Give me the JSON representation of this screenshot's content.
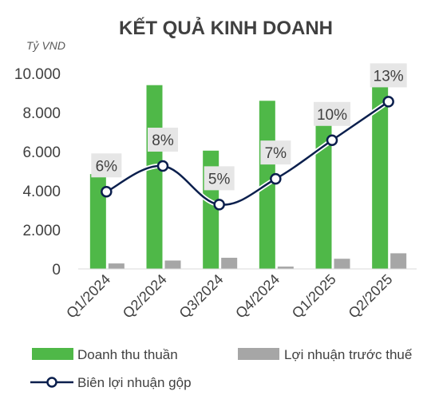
{
  "chart_data": {
    "type": "bar",
    "title": "KẾT QUẢ KINH DOANH",
    "unit_label": "Tỷ VND",
    "categories": [
      "Q1/2024",
      "Q2/2024",
      "Q3/2024",
      "Q4/2024",
      "Q1/2025",
      "Q2/2025"
    ],
    "ylim": [
      0,
      10000
    ],
    "yticks": [
      "0",
      "2.000",
      "4.000",
      "6.000",
      "8.000",
      "10.000"
    ],
    "ytick_values": [
      0,
      2000,
      4000,
      6000,
      8000,
      10000
    ],
    "grid": false,
    "legend_position": "bottom",
    "series": [
      {
        "name": "Doanh thu thuần",
        "kind": "bar",
        "color": "#4fb848",
        "values": [
          4850,
          9400,
          6050,
          8600,
          7750,
          9450
        ]
      },
      {
        "name": "Lợi nhuận trước thuế",
        "kind": "bar",
        "color": "#a6a6a6",
        "values": [
          280,
          430,
          570,
          120,
          520,
          800
        ]
      },
      {
        "name": "Biên lợi nhuận gộp",
        "kind": "line",
        "color": "#0b1f4d",
        "marker": "circle",
        "values": [
          6,
          8,
          5,
          7,
          10,
          13
        ],
        "labels": [
          "6%",
          "8%",
          "5%",
          "7%",
          "10%",
          "13%"
        ]
      }
    ]
  }
}
